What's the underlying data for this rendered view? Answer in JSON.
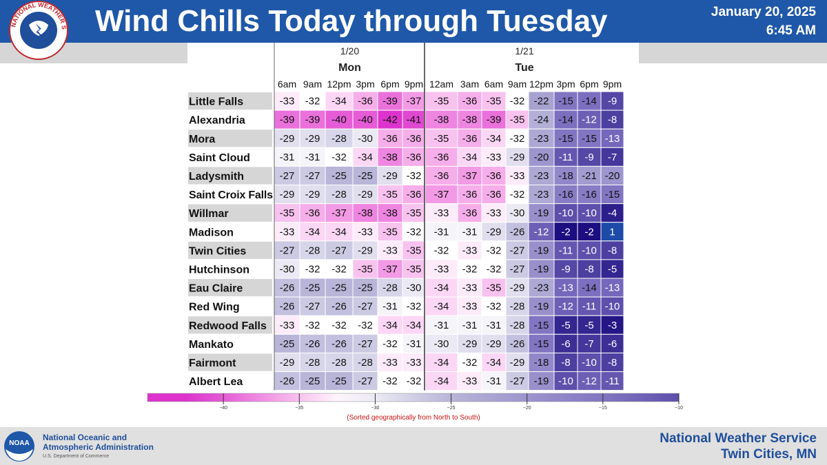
{
  "header": {
    "title": "Wind Chills Today through Tuesday",
    "date": "January 20, 2025",
    "time": "6:45 AM"
  },
  "logo": {
    "seal_text": "NATIONAL WEATHER SERVICE",
    "noaa_text": "NOAA"
  },
  "chart_data": {
    "type": "heatmap",
    "days": [
      {
        "date": "1/20",
        "day": "Mon"
      },
      {
        "date": "1/21",
        "day": "Tue"
      }
    ],
    "columns": [
      "6am",
      "9am",
      "12pm",
      "3pm",
      "6pm",
      "9pm",
      "12am",
      "3am",
      "6am",
      "9am",
      "12pm",
      "3pm",
      "6pm",
      "9pm"
    ],
    "day_of_column": [
      0,
      0,
      0,
      0,
      0,
      0,
      1,
      1,
      1,
      1,
      1,
      1,
      1,
      1
    ],
    "rows": [
      {
        "location": "Little Falls",
        "values": [
          -33,
          -32,
          -34,
          -36,
          -39,
          -37,
          -35,
          -36,
          -35,
          -32,
          -22,
          -15,
          -14,
          -9
        ]
      },
      {
        "location": "Alexandria",
        "values": [
          -39,
          -39,
          -40,
          -40,
          -42,
          -41,
          -38,
          -38,
          -39,
          -35,
          -24,
          -14,
          -12,
          -8
        ]
      },
      {
        "location": "Mora",
        "values": [
          -29,
          -29,
          -28,
          -30,
          -36,
          -36,
          -35,
          -36,
          -34,
          -32,
          -23,
          -15,
          -15,
          -13
        ]
      },
      {
        "location": "Saint Cloud",
        "values": [
          -31,
          -31,
          -32,
          -34,
          -38,
          -36,
          -36,
          -34,
          -33,
          -29,
          -20,
          -11,
          -9,
          -7
        ]
      },
      {
        "location": "Ladysmith",
        "values": [
          -27,
          -27,
          -25,
          -25,
          -29,
          -32,
          -36,
          -37,
          -36,
          -33,
          -23,
          -18,
          -21,
          -20
        ]
      },
      {
        "location": "Saint Croix Falls",
        "values": [
          -29,
          -29,
          -28,
          -29,
          -35,
          -36,
          -37,
          -36,
          -36,
          -32,
          -23,
          -16,
          -16,
          -15
        ]
      },
      {
        "location": "Willmar",
        "values": [
          -35,
          -36,
          -37,
          -38,
          -38,
          -35,
          -33,
          -36,
          -33,
          -30,
          -19,
          -10,
          -10,
          -4
        ]
      },
      {
        "location": "Madison",
        "values": [
          -33,
          -34,
          -34,
          -33,
          -35,
          -32,
          -31,
          -31,
          -29,
          -26,
          -12,
          -2,
          -2,
          1
        ]
      },
      {
        "location": "Twin Cities",
        "values": [
          -27,
          -28,
          -27,
          -29,
          -33,
          -35,
          -32,
          -33,
          -32,
          -27,
          -19,
          -11,
          -10,
          -8
        ]
      },
      {
        "location": "Hutchinson",
        "values": [
          -30,
          -32,
          -32,
          -35,
          -37,
          -35,
          -33,
          -32,
          -32,
          -27,
          -19,
          -9,
          -8,
          -5
        ]
      },
      {
        "location": "Eau Claire",
        "values": [
          -26,
          -25,
          -25,
          -25,
          -28,
          -30,
          -34,
          -33,
          -35,
          -29,
          -23,
          -13,
          -14,
          -13
        ]
      },
      {
        "location": "Red Wing",
        "values": [
          -26,
          -27,
          -26,
          -27,
          -31,
          -32,
          -34,
          -33,
          -32,
          -28,
          -19,
          -12,
          -11,
          -10
        ]
      },
      {
        "location": "Redwood Falls",
        "values": [
          -33,
          -32,
          -32,
          -32,
          -34,
          -34,
          -31,
          -31,
          -31,
          -28,
          -15,
          -5,
          -5,
          -3
        ]
      },
      {
        "location": "Mankato",
        "values": [
          -25,
          -26,
          -26,
          -27,
          -32,
          -31,
          -30,
          -29,
          -29,
          -26,
          -15,
          -6,
          -7,
          -6
        ]
      },
      {
        "location": "Fairmont",
        "values": [
          -29,
          -28,
          -28,
          -28,
          -33,
          -33,
          -34,
          -32,
          -34,
          -29,
          -18,
          -8,
          -10,
          -8
        ]
      },
      {
        "location": "Albert Lea",
        "values": [
          -26,
          -25,
          -25,
          -27,
          -32,
          -32,
          -34,
          -33,
          -31,
          -27,
          -19,
          -10,
          -12,
          -11
        ]
      }
    ],
    "colorbar": {
      "ticks": [
        -40,
        -35,
        -30,
        -25,
        -20,
        -15,
        -10
      ],
      "min": -45,
      "max": -10
    },
    "caption": "(Sorted geographically from North to South)",
    "colors": {
      "very_cold": "#dd33cc",
      "cold": "#f6aeea",
      "neutral": "#ffffff",
      "mild": "#b8b5d8",
      "warmer": "#7d6fc0",
      "warmest": "#1c0e80",
      "positive": "#1e4aa8",
      "location_band": "#d6d6d6",
      "caption": "#cc1111"
    }
  },
  "footer": {
    "noaa_line1": "National Oceanic and",
    "noaa_line2": "Atmospheric Administration",
    "noaa_dept": "U.S. Department of Commerce",
    "nws_line1": "National Weather Service",
    "nws_line2": "Twin Cities, MN"
  }
}
